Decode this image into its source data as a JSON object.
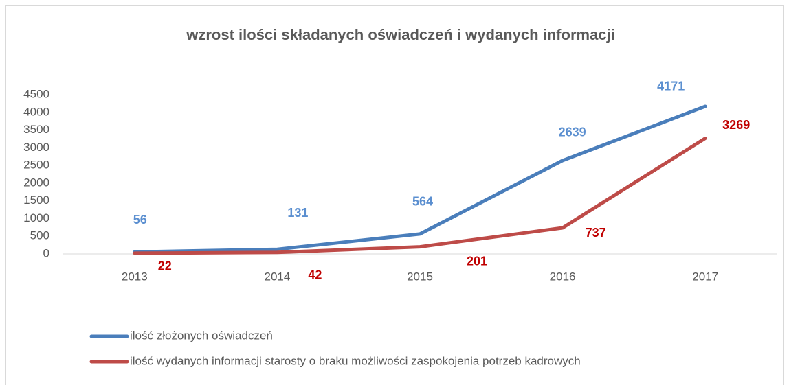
{
  "chart_data": {
    "type": "line",
    "title": "wzrost ilości składanych oświadczeń i wydanych informacji",
    "categories": [
      "2013",
      "2014",
      "2015",
      "2016",
      "2017"
    ],
    "series": [
      {
        "name": "ilość złożonych oświadczeń",
        "color": "#4a7ebb",
        "label_color": "#5b8fd0",
        "values": [
          56,
          131,
          564,
          2639,
          4171
        ]
      },
      {
        "name": "ilość wydanych informacji starosty o braku możliwości zaspokojenia potrzeb kadrowych",
        "color": "#be4b48",
        "label_color": "#c00000",
        "values": [
          22,
          42,
          201,
          737,
          3269
        ]
      }
    ],
    "ylim": [
      0,
      4500
    ],
    "yticks": [
      0,
      500,
      1000,
      1500,
      2000,
      2500,
      3000,
      3500,
      4000,
      4500
    ],
    "grid": false,
    "legend": "bottom"
  }
}
